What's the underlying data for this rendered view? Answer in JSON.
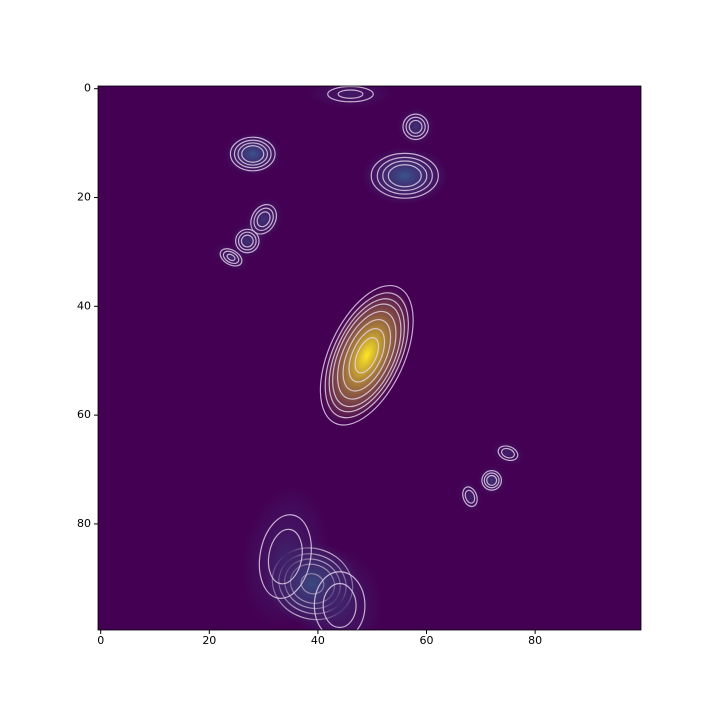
{
  "chart_data": {
    "type": "image",
    "xlim": [
      -0.5,
      99.5
    ],
    "ylim": [
      99.5,
      -0.5
    ],
    "xticks": [
      0,
      20,
      40,
      60,
      80
    ],
    "yticks": [
      0,
      20,
      40,
      60,
      80
    ],
    "clim": [
      0,
      1
    ],
    "levels": [
      0.03,
      0.06,
      0.1,
      0.15,
      0.25,
      0.4,
      0.6,
      0.8
    ],
    "contour_color": "#e8d8ee",
    "peaks": [
      {
        "x": 49,
        "y": 49,
        "value": 1.0,
        "sx": 2.6,
        "sy": 5.2,
        "angle": 25
      },
      {
        "x": 28,
        "y": 12,
        "value": 0.25,
        "sx": 2.0,
        "sy": 1.5,
        "angle": 0
      },
      {
        "x": 56,
        "y": 16,
        "value": 0.25,
        "sx": 3.0,
        "sy": 2.0,
        "angle": 0
      },
      {
        "x": 58,
        "y": 7,
        "value": 0.15,
        "sx": 1.3,
        "sy": 1.3,
        "angle": 0
      },
      {
        "x": 30,
        "y": 24,
        "value": 0.15,
        "sx": 1.2,
        "sy": 1.6,
        "angle": 30
      },
      {
        "x": 27,
        "y": 28,
        "value": 0.15,
        "sx": 1.2,
        "sy": 1.2,
        "angle": 0
      },
      {
        "x": 24,
        "y": 31,
        "value": 0.12,
        "sx": 1.3,
        "sy": 0.8,
        "angle": 30
      },
      {
        "x": 39,
        "y": 91,
        "value": 0.3,
        "sx": 3.5,
        "sy": 3.0,
        "angle": 20
      },
      {
        "x": 34,
        "y": 86,
        "value": 0.1,
        "sx": 3.0,
        "sy": 5.0,
        "angle": 10
      },
      {
        "x": 44,
        "y": 95,
        "value": 0.1,
        "sx": 3.0,
        "sy": 4.0,
        "angle": 0
      },
      {
        "x": 72,
        "y": 72,
        "value": 0.15,
        "sx": 1.0,
        "sy": 1.0,
        "angle": 0
      },
      {
        "x": 75,
        "y": 67,
        "value": 0.1,
        "sx": 1.2,
        "sy": 0.8,
        "angle": 20
      },
      {
        "x": 68,
        "y": 75,
        "value": 0.1,
        "sx": 0.8,
        "sy": 1.2,
        "angle": -20
      },
      {
        "x": 46,
        "y": 1,
        "value": 0.08,
        "sx": 3.0,
        "sy": 1.0,
        "angle": 0
      }
    ]
  }
}
